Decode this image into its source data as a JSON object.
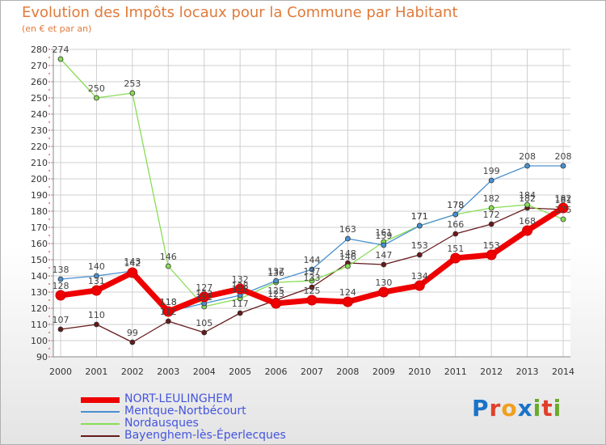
{
  "title": "Evolution des Impôts locaux pour la Commune par Habitant",
  "subtitle": "(en € et par an)",
  "logo": {
    "text": "Proxiti",
    "letters": [
      {
        "ch": "P",
        "color": "#1a73c8"
      },
      {
        "ch": "r",
        "color": "#e0402a"
      },
      {
        "ch": "o",
        "color": "#f0a020"
      },
      {
        "ch": "x",
        "color": "#1a73c8"
      },
      {
        "ch": "i",
        "color": "#6aaa2a"
      },
      {
        "ch": "t",
        "color": "#e0402a"
      },
      {
        "ch": "i",
        "color": "#6aaa2a"
      }
    ]
  },
  "chart_data": {
    "type": "line",
    "title": "Evolution des Impôts locaux pour la Commune par Habitant",
    "subtitle": "(en € et par an)",
    "x": [
      "2000",
      "2001",
      "2002",
      "2003",
      "2004",
      "2005",
      "2006",
      "2007",
      "2008",
      "2009",
      "2010",
      "2011",
      "2012",
      "2013",
      "2014"
    ],
    "ylim": [
      90,
      280
    ],
    "yticks": [
      90,
      100,
      110,
      120,
      130,
      140,
      150,
      160,
      170,
      180,
      190,
      200,
      210,
      220,
      230,
      240,
      250,
      260,
      270,
      280
    ],
    "grid": true,
    "legend_position": "bottom",
    "series": [
      {
        "name": "NORT-LEULINGHEM",
        "color": "#ee0000",
        "values": [
          128,
          131,
          142,
          118,
          127,
          132,
          123,
          125,
          124,
          130,
          134,
          151,
          153,
          168,
          182
        ],
        "labels": [
          "128",
          "131",
          "142",
          "118",
          "127",
          "132",
          "123",
          "125",
          "124",
          "130",
          "134",
          "151",
          "153",
          "168",
          "182"
        ]
      },
      {
        "name": "Mentque-Nortbécourt",
        "color": "#4a90d0",
        "values": [
          138,
          140,
          143,
          118,
          123,
          128,
          137,
          144,
          163,
          159,
          171,
          178,
          199,
          208,
          208
        ],
        "labels": [
          "138",
          "140",
          "143",
          "118",
          "123",
          "128",
          "137",
          "144",
          "163",
          "159",
          "171",
          "178",
          "199",
          "208",
          "208"
        ]
      },
      {
        "name": "Nordausques",
        "color": "#88dd55",
        "values": [
          274,
          250,
          253,
          146,
          121,
          126,
          136,
          137,
          146,
          161,
          171,
          178,
          182,
          184,
          175
        ],
        "labels": [
          "274",
          "250",
          "253",
          "146",
          "121",
          "126",
          "136",
          "137",
          "146",
          "161",
          "171",
          "178",
          "182",
          "184",
          "175"
        ]
      },
      {
        "name": "Bayenghem-lès-Éperlecques",
        "color": "#661a1a",
        "values": [
          107,
          110,
          99,
          112,
          105,
          117,
          125,
          133,
          148,
          147,
          153,
          166,
          172,
          182,
          181
        ],
        "labels": [
          "107",
          "110",
          "99",
          "112",
          "105",
          "117",
          "125",
          "133",
          "148",
          "147",
          "153",
          "166",
          "172",
          "182",
          "181"
        ]
      }
    ]
  }
}
